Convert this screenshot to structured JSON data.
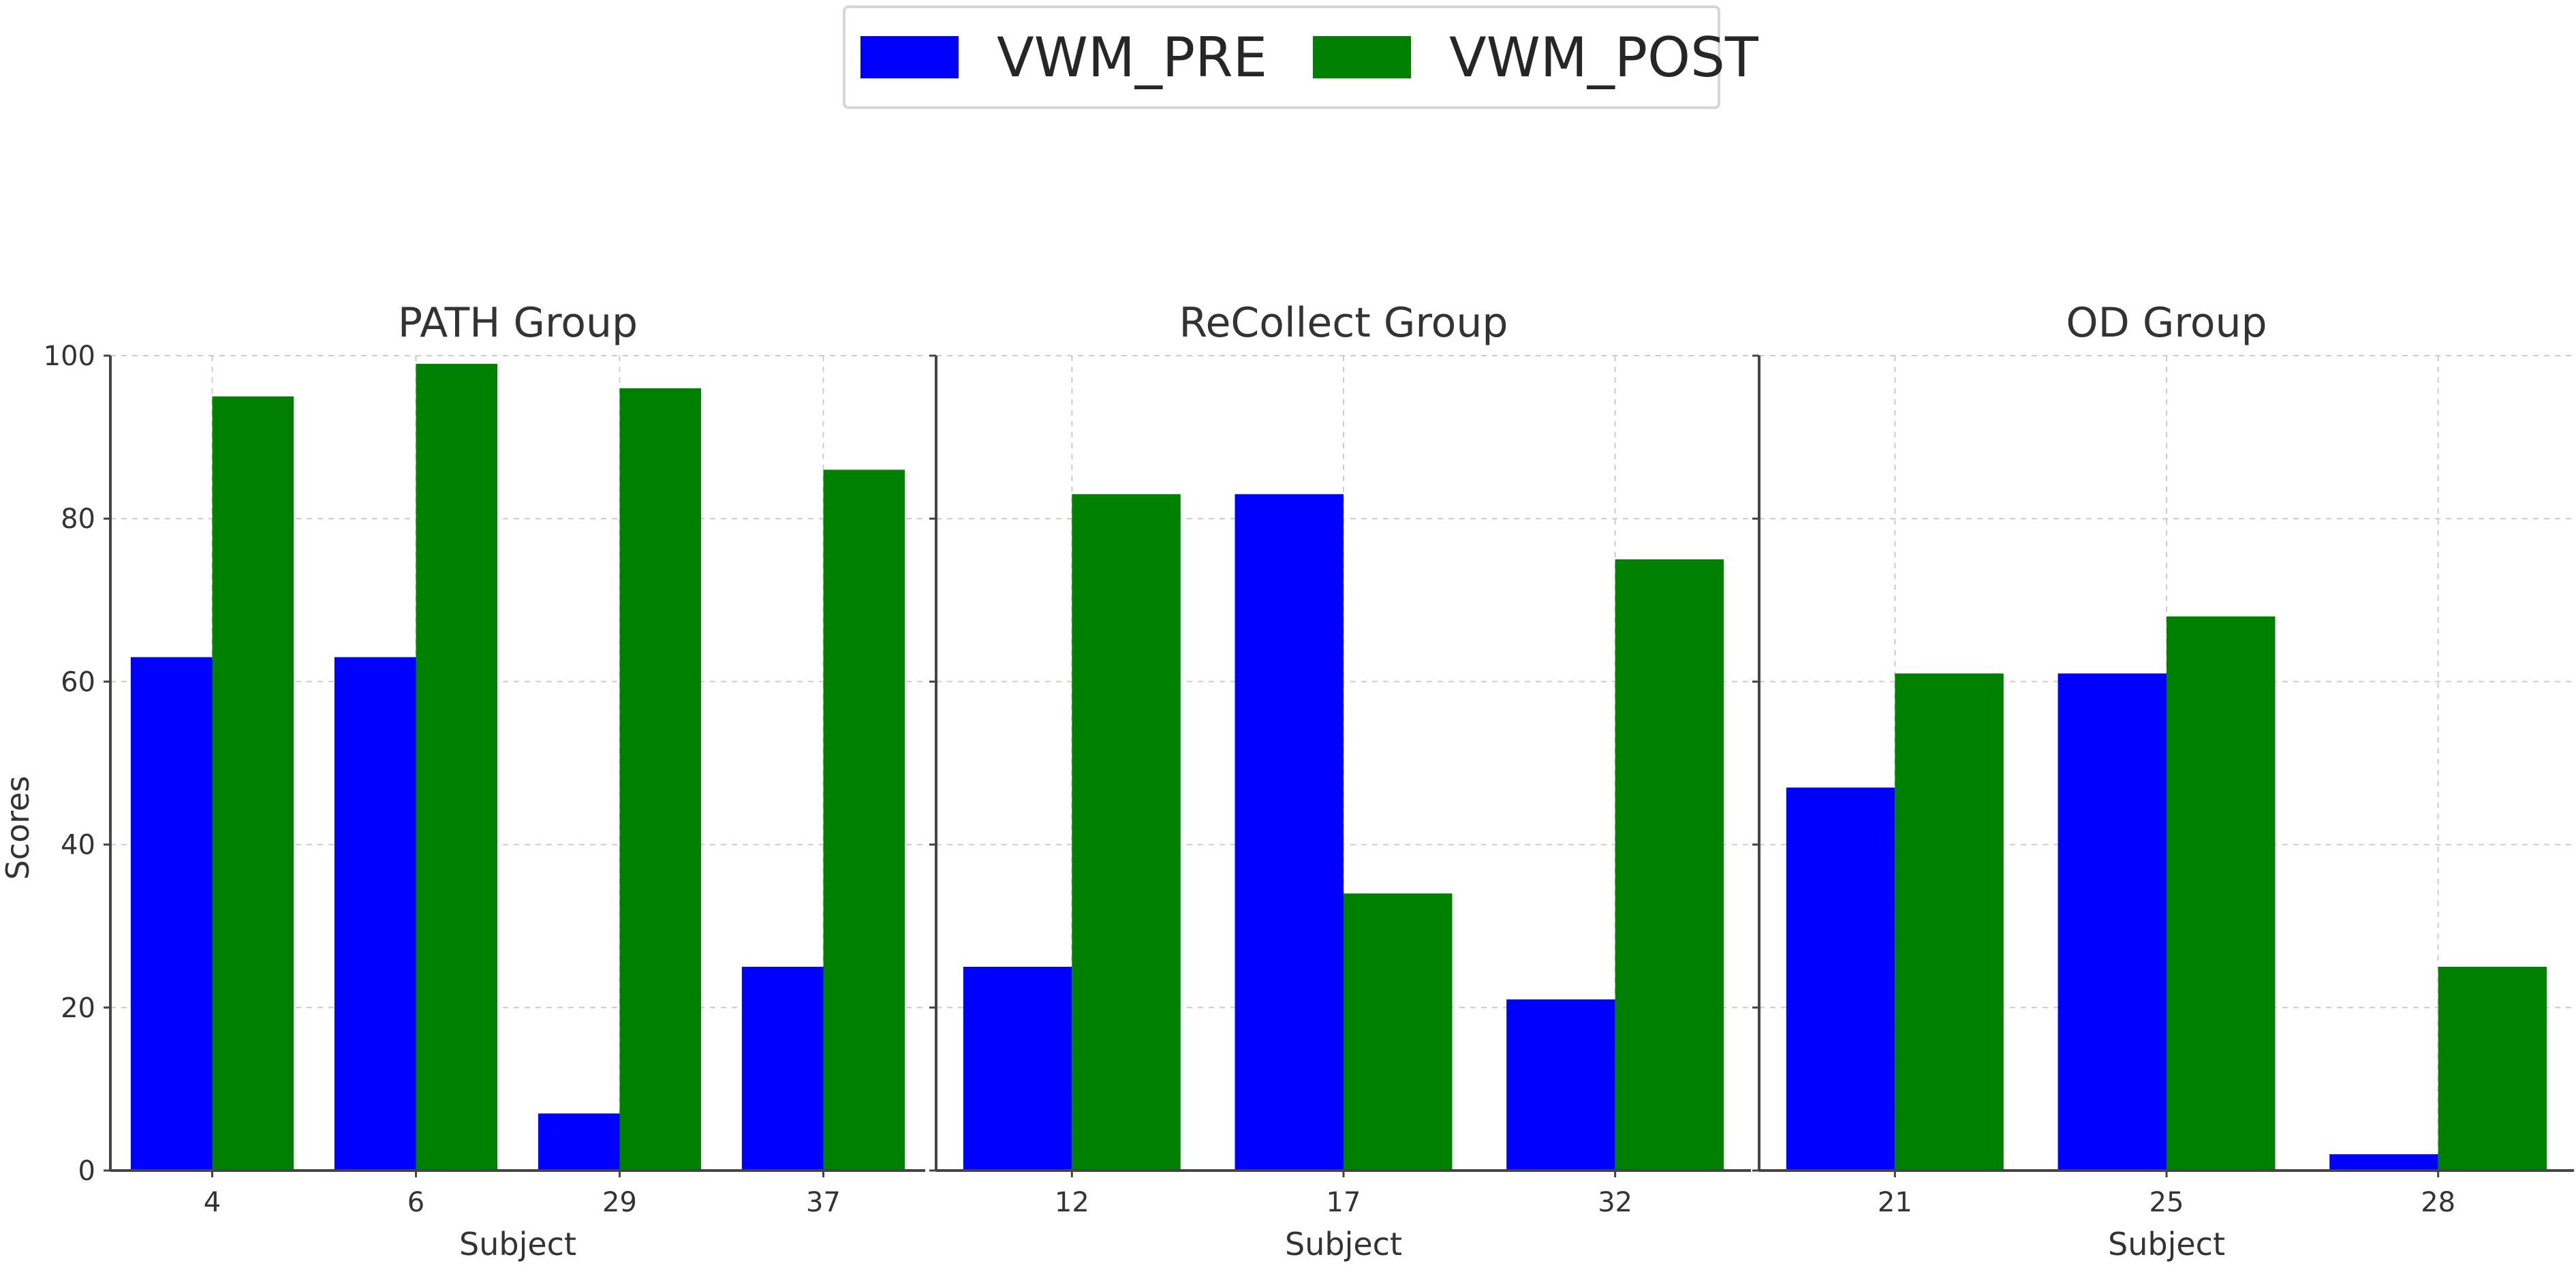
{
  "chart_data": {
    "type": "bar",
    "ylabel": "Scores",
    "xlabel": "Subject",
    "ylim": [
      0,
      100
    ],
    "yticks": [
      0,
      20,
      40,
      60,
      80,
      100
    ],
    "grid": true,
    "legend_position": "top-center",
    "series_meta": [
      {
        "name": "VWM_PRE",
        "color": "#0000ff"
      },
      {
        "name": "VWM_POST",
        "color": "#008000"
      }
    ],
    "panels": [
      {
        "title": "PATH Group",
        "categories": [
          "4",
          "6",
          "29",
          "37"
        ],
        "series": [
          {
            "name": "VWM_PRE",
            "values": [
              63,
              63,
              7,
              25
            ]
          },
          {
            "name": "VWM_POST",
            "values": [
              95,
              99,
              96,
              86
            ]
          }
        ]
      },
      {
        "title": "ReCollect Group",
        "categories": [
          "12",
          "17",
          "32"
        ],
        "series": [
          {
            "name": "VWM_PRE",
            "values": [
              25,
              83,
              21
            ]
          },
          {
            "name": "VWM_POST",
            "values": [
              83,
              34,
              75
            ]
          }
        ]
      },
      {
        "title": "OD Group",
        "categories": [
          "21",
          "25",
          "28"
        ],
        "series": [
          {
            "name": "VWM_PRE",
            "values": [
              47,
              61,
              2
            ]
          },
          {
            "name": "VWM_POST",
            "values": [
              61,
              68,
              25
            ]
          }
        ]
      }
    ]
  }
}
